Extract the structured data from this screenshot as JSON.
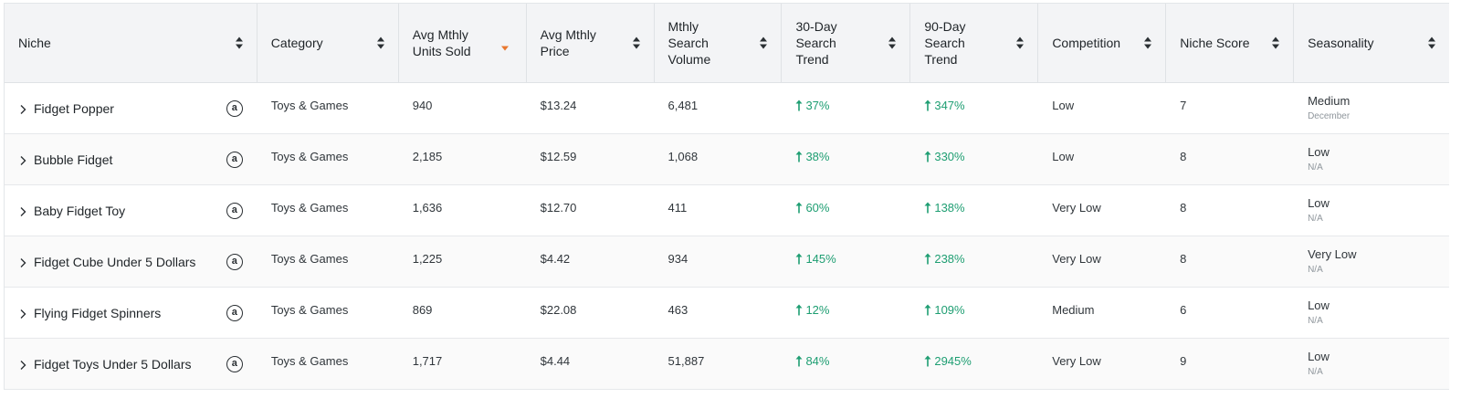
{
  "columns": [
    {
      "label": "Niche",
      "sort": "both"
    },
    {
      "label": "Category",
      "sort": "both"
    },
    {
      "label": "Avg Mthly\nUnits Sold",
      "sort": "desc"
    },
    {
      "label": "Avg Mthly\nPrice",
      "sort": "both"
    },
    {
      "label": "Mthly\nSearch\nVolume",
      "sort": "both"
    },
    {
      "label": "30-Day\nSearch\nTrend",
      "sort": "both"
    },
    {
      "label": "90-Day\nSearch\nTrend",
      "sort": "both"
    },
    {
      "label": "Competition",
      "sort": "both"
    },
    {
      "label": "Niche Score",
      "sort": "both"
    },
    {
      "label": "Seasonality",
      "sort": "both"
    }
  ],
  "colors": {
    "trend_up": "#1e9e72",
    "sort_active": "#e8772e"
  },
  "rows": [
    {
      "niche": "Fidget Popper",
      "category": "Toys & Games",
      "units": "940",
      "price": "$13.24",
      "volume": "6,481",
      "trend30": "37%",
      "trend90": "347%",
      "competition": "Low",
      "score": "7",
      "seasonality": "Medium",
      "season_month": "December"
    },
    {
      "niche": "Bubble Fidget",
      "category": "Toys & Games",
      "units": "2,185",
      "price": "$12.59",
      "volume": "1,068",
      "trend30": "38%",
      "trend90": "330%",
      "competition": "Low",
      "score": "8",
      "seasonality": "Low",
      "season_month": "N/A"
    },
    {
      "niche": "Baby Fidget Toy",
      "category": "Toys & Games",
      "units": "1,636",
      "price": "$12.70",
      "volume": "411",
      "trend30": "60%",
      "trend90": "138%",
      "competition": "Very Low",
      "score": "8",
      "seasonality": "Low",
      "season_month": "N/A"
    },
    {
      "niche": "Fidget Cube Under 5 Dollars",
      "category": "Toys & Games",
      "units": "1,225",
      "price": "$4.42",
      "volume": "934",
      "trend30": "145%",
      "trend90": "238%",
      "competition": "Very Low",
      "score": "8",
      "seasonality": "Very Low",
      "season_month": "N/A"
    },
    {
      "niche": "Flying Fidget Spinners",
      "category": "Toys & Games",
      "units": "869",
      "price": "$22.08",
      "volume": "463",
      "trend30": "12%",
      "trend90": "109%",
      "competition": "Medium",
      "score": "6",
      "seasonality": "Low",
      "season_month": "N/A"
    },
    {
      "niche": "Fidget Toys Under 5 Dollars",
      "category": "Toys & Games",
      "units": "1,717",
      "price": "$4.44",
      "volume": "51,887",
      "trend30": "84%",
      "trend90": "2945%",
      "competition": "Very Low",
      "score": "9",
      "seasonality": "Low",
      "season_month": "N/A"
    }
  ]
}
